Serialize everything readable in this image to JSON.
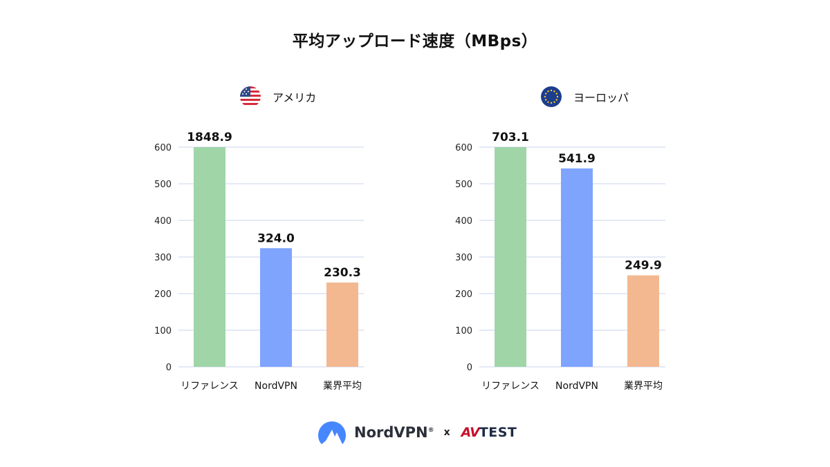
{
  "title": "平均アップロード速度（MBps）",
  "colors": {
    "reference": "#a0d5a8",
    "nordvpn": "#7ea4fe",
    "industry": "#f4b890",
    "grid": "#e4e9f6",
    "text": "#111111"
  },
  "chart_data": [
    {
      "type": "bar",
      "panel_label": "アメリカ",
      "flag_icon": "us-flag-icon",
      "categories": [
        "リファレンス",
        "NordVPN",
        "業界平均"
      ],
      "values": [
        1848.9,
        324.0,
        230.3
      ],
      "value_labels": [
        "1848.9",
        "324.0",
        "230.3"
      ],
      "y_ticks": [
        0,
        100,
        200,
        300,
        400,
        500,
        600
      ],
      "ylim": [
        0,
        600
      ],
      "grid": true,
      "note": "first bar exceeds axis and is clipped at top"
    },
    {
      "type": "bar",
      "panel_label": "ヨーロッパ",
      "flag_icon": "eu-flag-icon",
      "categories": [
        "リファレンス",
        "NordVPN",
        "業界平均"
      ],
      "values": [
        703.1,
        541.9,
        249.9
      ],
      "value_labels": [
        "703.1",
        "541.9",
        "249.9"
      ],
      "y_ticks": [
        0,
        100,
        200,
        300,
        400,
        500,
        600
      ],
      "ylim": [
        0,
        600
      ],
      "grid": true
    }
  ],
  "footer": {
    "brand": "NordVPN",
    "trademark": "®",
    "times": "x",
    "partner_av": "AV",
    "partner_test": "TEST"
  }
}
